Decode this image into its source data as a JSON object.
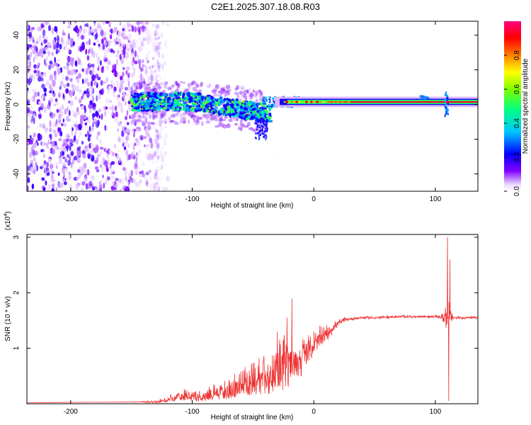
{
  "title": "C2E1.2025.307.18.08.R03",
  "chart_data": [
    {
      "type": "heatmap",
      "name": "spectrogram",
      "xlabel": "Height of straight line (km)",
      "ylabel": "Frequency (Hz)",
      "xlim": [
        -236,
        135
      ],
      "ylim": [
        -50,
        48
      ],
      "xticks": [
        -200,
        -100,
        0,
        100
      ],
      "yticks": [
        -40,
        -20,
        0,
        20,
        40
      ],
      "xtick_labels": [
        "-200",
        "-100",
        "0",
        "100"
      ],
      "ytick_labels": [
        "-40",
        "-20",
        "0",
        "20",
        "40"
      ],
      "description_regions": {
        "noise_region_x": [
          -236,
          -128
        ],
        "signal_onset_x": -150,
        "signal_line_freq_hz": 1.5
      },
      "colorbar": {
        "label": "Normalized spectral amplitude",
        "range": [
          0,
          1
        ],
        "ticks": [
          0.0,
          0.2,
          0.4,
          0.6,
          0.8
        ],
        "tick_labels": [
          "0.0",
          "0.2",
          "0.4",
          "0.6",
          "0.8"
        ],
        "colors": [
          "#ffffff",
          "#8000ff",
          "#0000ff",
          "#00c8ff",
          "#00ff80",
          "#80ff00",
          "#ffff00",
          "#ff8000",
          "#ff0000",
          "#ff0080"
        ]
      }
    },
    {
      "type": "line",
      "name": "snr",
      "xlabel": "Height of straight line (km)",
      "ylabel": "SNR (10 * v/v)",
      "yscale_label": "(x10",
      "yscale_exp": "4",
      "yscale_close": ")",
      "xlim": [
        -236,
        135
      ],
      "ylim": [
        0,
        3.05
      ],
      "xticks": [
        -200,
        -100,
        0,
        100
      ],
      "yticks": [
        1,
        2,
        3
      ],
      "xtick_labels": [
        "-200",
        "-100",
        "0",
        "100"
      ],
      "ytick_labels": [
        "1",
        "2",
        "3"
      ],
      "color": "#ee3333",
      "envelope": {
        "x": [
          -236,
          -150,
          -130,
          -120,
          -110,
          -100,
          -90,
          -80,
          -70,
          -60,
          -50,
          -40,
          -30,
          -25,
          -20,
          -15,
          -10,
          -5,
          0,
          5,
          10,
          15,
          20,
          25,
          30,
          40,
          50,
          60,
          70,
          80,
          90,
          100,
          105,
          108,
          112,
          115,
          120,
          135
        ],
        "y": [
          0.02,
          0.03,
          0.04,
          0.08,
          0.15,
          0.1,
          0.12,
          0.18,
          0.22,
          0.3,
          0.35,
          0.4,
          0.5,
          0.6,
          0.7,
          0.75,
          0.85,
          0.95,
          1.05,
          1.15,
          1.25,
          1.35,
          1.45,
          1.5,
          1.53,
          1.55,
          1.55,
          1.56,
          1.57,
          1.57,
          1.57,
          1.57,
          1.56,
          1.56,
          1.56,
          1.55,
          1.55,
          1.55
        ],
        "noise": [
          0.0,
          0.005,
          0.01,
          0.05,
          0.12,
          0.1,
          0.12,
          0.18,
          0.22,
          0.3,
          0.35,
          0.4,
          0.45,
          0.6,
          0.5,
          0.45,
          0.35,
          0.35,
          0.3,
          0.25,
          0.18,
          0.12,
          0.08,
          0.06,
          0.04,
          0.03,
          0.03,
          0.03,
          0.03,
          0.03,
          0.03,
          0.03,
          0.04,
          0.3,
          0.3,
          0.04,
          0.03,
          0.03
        ]
      },
      "peaks": [
        {
          "x": -18,
          "y": 1.9
        },
        {
          "x": -22,
          "y": 1.55
        },
        {
          "x": -30,
          "y": 1.3
        },
        {
          "x": 110,
          "y": 3.0
        },
        {
          "x": 112,
          "y": 2.6
        },
        {
          "x": 111,
          "y": 0.05
        }
      ]
    }
  ]
}
